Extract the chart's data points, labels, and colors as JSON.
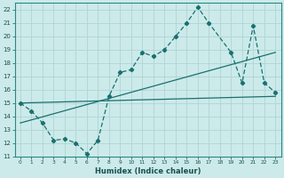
{
  "xlabel": "Humidex (Indice chaleur)",
  "background_color": "#cceaea",
  "grid_color": "#b0d4d4",
  "line_color": "#1a7070",
  "xlim": [
    -0.5,
    23.5
  ],
  "ylim": [
    11,
    22.5
  ],
  "xticks": [
    0,
    1,
    2,
    3,
    4,
    5,
    6,
    7,
    8,
    9,
    10,
    11,
    12,
    13,
    14,
    15,
    16,
    17,
    18,
    19,
    20,
    21,
    22,
    23
  ],
  "yticks": [
    11,
    12,
    13,
    14,
    15,
    16,
    17,
    18,
    19,
    20,
    21,
    22
  ],
  "zigzag_x": [
    0,
    1,
    2,
    3,
    4,
    5,
    6,
    7,
    8,
    9,
    10,
    11,
    12,
    13,
    14,
    15,
    16,
    17,
    19,
    20,
    21,
    22,
    23
  ],
  "zigzag_y": [
    15.0,
    14.4,
    13.5,
    12.2,
    12.3,
    12.0,
    11.2,
    12.2,
    15.5,
    17.3,
    17.5,
    18.8,
    18.5,
    19.0,
    20.0,
    21.0,
    22.2,
    21.0,
    18.8,
    16.5,
    20.8,
    16.5,
    15.8
  ],
  "line1_x": [
    0,
    23
  ],
  "line1_y": [
    15.0,
    15.5
  ],
  "line2_x": [
    0,
    23
  ],
  "line2_y": [
    13.5,
    18.8
  ]
}
